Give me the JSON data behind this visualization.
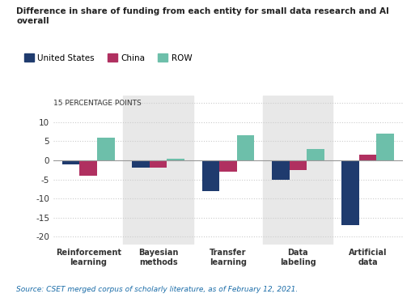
{
  "title": "Difference in share of funding from each entity for small data research and AI overall",
  "categories": [
    "Reinforcement\nlearning",
    "Bayesian\nmethods",
    "Transfer\nlearning",
    "Data\nlabeling",
    "Artificial\ndata"
  ],
  "series": {
    "United States": [
      -1.0,
      -2.0,
      -8.0,
      -5.0,
      -17.0
    ],
    "China": [
      -4.0,
      -2.0,
      -3.0,
      -2.5,
      1.5
    ],
    "ROW": [
      6.0,
      0.5,
      6.5,
      3.0,
      7.0
    ]
  },
  "colors": {
    "United States": "#1f3b6e",
    "China": "#b03060",
    "ROW": "#6dbfaa"
  },
  "ylim": [
    -22,
    17
  ],
  "yticks": [
    -20,
    -15,
    -10,
    -5,
    0,
    5,
    10,
    15
  ],
  "ylabel_top": "15 PERCENTAGE POINTS",
  "shaded_cols": [
    1,
    3
  ],
  "bar_width": 0.25,
  "background_color": "#ffffff",
  "shaded_color": "#e8e8e8",
  "source_text": "Source: CSET merged corpus of scholarly literature, as of February 12, 2021.",
  "grid_color": "#cccccc",
  "zero_line_color": "#999999"
}
